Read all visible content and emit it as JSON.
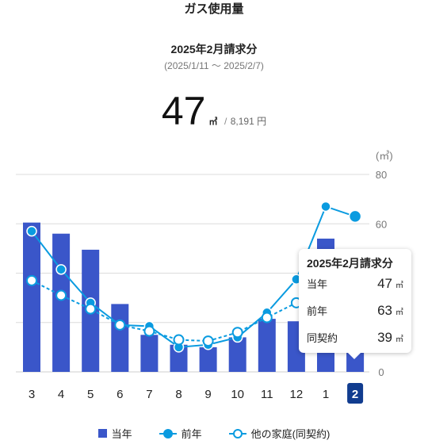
{
  "header": {
    "title": "ガス使用量",
    "period_label": "2025年2月請求分",
    "period_range": "(2025/1/11 〜 2025/2/7)"
  },
  "summary": {
    "usage_value": "47",
    "usage_unit": "㎥",
    "separator": "/",
    "price": "8,191 円"
  },
  "chart_data": {
    "type": "bar",
    "y_unit_label": "(㎥)",
    "categories": [
      "3",
      "4",
      "5",
      "6",
      "7",
      "8",
      "9",
      "10",
      "11",
      "12",
      "1",
      "2"
    ],
    "ylim": [
      0,
      80
    ],
    "yticks": [
      0,
      20,
      40,
      60,
      80
    ],
    "ytick_labels": [
      "0",
      "",
      "",
      "60",
      "80"
    ],
    "selected_index": 11,
    "series": [
      {
        "name": "当年",
        "kind": "bar",
        "color": "#3a56c9",
        "values": [
          60.5,
          56,
          49.5,
          27.5,
          15,
          11,
          10,
          14,
          21.5,
          20.5,
          54,
          47
        ]
      },
      {
        "name": "前年",
        "kind": "line",
        "color": "#0a9be0",
        "values": [
          57,
          41.5,
          28,
          19,
          18.5,
          10,
          11,
          14,
          24,
          37.5,
          67,
          63
        ]
      },
      {
        "name": "他の家庭(同契約)",
        "kind": "dashed-line",
        "color": "#0a9be0",
        "values": [
          37,
          31,
          25.5,
          19,
          16.5,
          13,
          12.5,
          16,
          22,
          28,
          36,
          39
        ]
      }
    ],
    "grid": true,
    "legend_position": "bottom"
  },
  "tooltip": {
    "title": "2025年2月請求分",
    "rows": [
      {
        "label": "当年",
        "value": "47",
        "unit": "㎥"
      },
      {
        "label": "前年",
        "value": "63",
        "unit": "㎥"
      },
      {
        "label": "同契約",
        "value": "39",
        "unit": "㎥"
      }
    ]
  },
  "legend": {
    "items": [
      "当年",
      "前年",
      "他の家庭(同契約)"
    ]
  }
}
